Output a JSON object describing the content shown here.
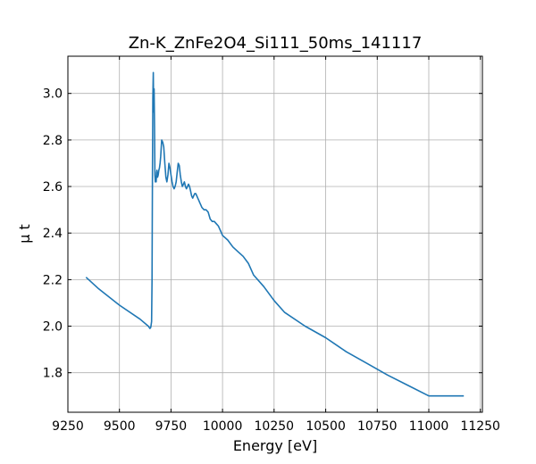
{
  "chart_data": {
    "type": "line",
    "title": "Zn-K_ZnFe2O4_Si111_50ms_141117",
    "xlabel": "Energy [eV]",
    "ylabel": "μ t",
    "xlim": [
      9250,
      11260
    ],
    "ylim": [
      1.63,
      3.16
    ],
    "xticks": [
      9250,
      9500,
      9750,
      10000,
      10250,
      10500,
      10750,
      11000,
      11250
    ],
    "yticks": [
      1.8,
      2.0,
      2.2,
      2.4,
      2.6,
      2.8,
      3.0
    ],
    "grid": true,
    "series": [
      {
        "color": "#1f77b4",
        "x": [
          9338,
          9400,
          9500,
          9600,
          9640,
          9648,
          9652,
          9656,
          9658,
          9660,
          9662,
          9664,
          9666,
          9668,
          9670,
          9672,
          9674,
          9676,
          9678,
          9680,
          9682,
          9685,
          9688,
          9691,
          9694,
          9697,
          9700,
          9705,
          9710,
          9715,
          9720,
          9725,
          9730,
          9735,
          9740,
          9745,
          9750,
          9755,
          9760,
          9765,
          9770,
          9775,
          9780,
          9785,
          9790,
          9795,
          9800,
          9805,
          9810,
          9815,
          9820,
          9825,
          9830,
          9835,
          9840,
          9845,
          9850,
          9855,
          9860,
          9865,
          9870,
          9875,
          9880,
          9885,
          9890,
          9895,
          9900,
          9910,
          9920,
          9930,
          9940,
          9950,
          9960,
          9970,
          9980,
          9990,
          10000,
          10025,
          10050,
          10075,
          10100,
          10125,
          10150,
          10200,
          10250,
          10300,
          10400,
          10500,
          10600,
          10700,
          10800,
          10900,
          11000,
          11100,
          11170
        ],
        "y": [
          2.21,
          2.16,
          2.09,
          2.03,
          2.0,
          1.99,
          1.995,
          2.02,
          2.2,
          2.6,
          2.98,
          3.09,
          2.92,
          3.02,
          2.85,
          2.65,
          2.62,
          2.64,
          2.62,
          2.66,
          2.67,
          2.64,
          2.65,
          2.67,
          2.68,
          2.7,
          2.73,
          2.8,
          2.79,
          2.77,
          2.7,
          2.64,
          2.62,
          2.65,
          2.7,
          2.68,
          2.65,
          2.62,
          2.6,
          2.59,
          2.6,
          2.62,
          2.66,
          2.7,
          2.69,
          2.65,
          2.62,
          2.6,
          2.61,
          2.62,
          2.6,
          2.59,
          2.6,
          2.61,
          2.6,
          2.58,
          2.56,
          2.55,
          2.56,
          2.57,
          2.57,
          2.56,
          2.55,
          2.54,
          2.53,
          2.52,
          2.51,
          2.5,
          2.5,
          2.49,
          2.46,
          2.45,
          2.45,
          2.44,
          2.43,
          2.41,
          2.39,
          2.37,
          2.34,
          2.32,
          2.3,
          2.27,
          2.22,
          2.17,
          2.11,
          2.06,
          2.0,
          1.95,
          1.89,
          1.84,
          1.79,
          1.745,
          1.7,
          1.7,
          1.7
        ]
      }
    ]
  }
}
